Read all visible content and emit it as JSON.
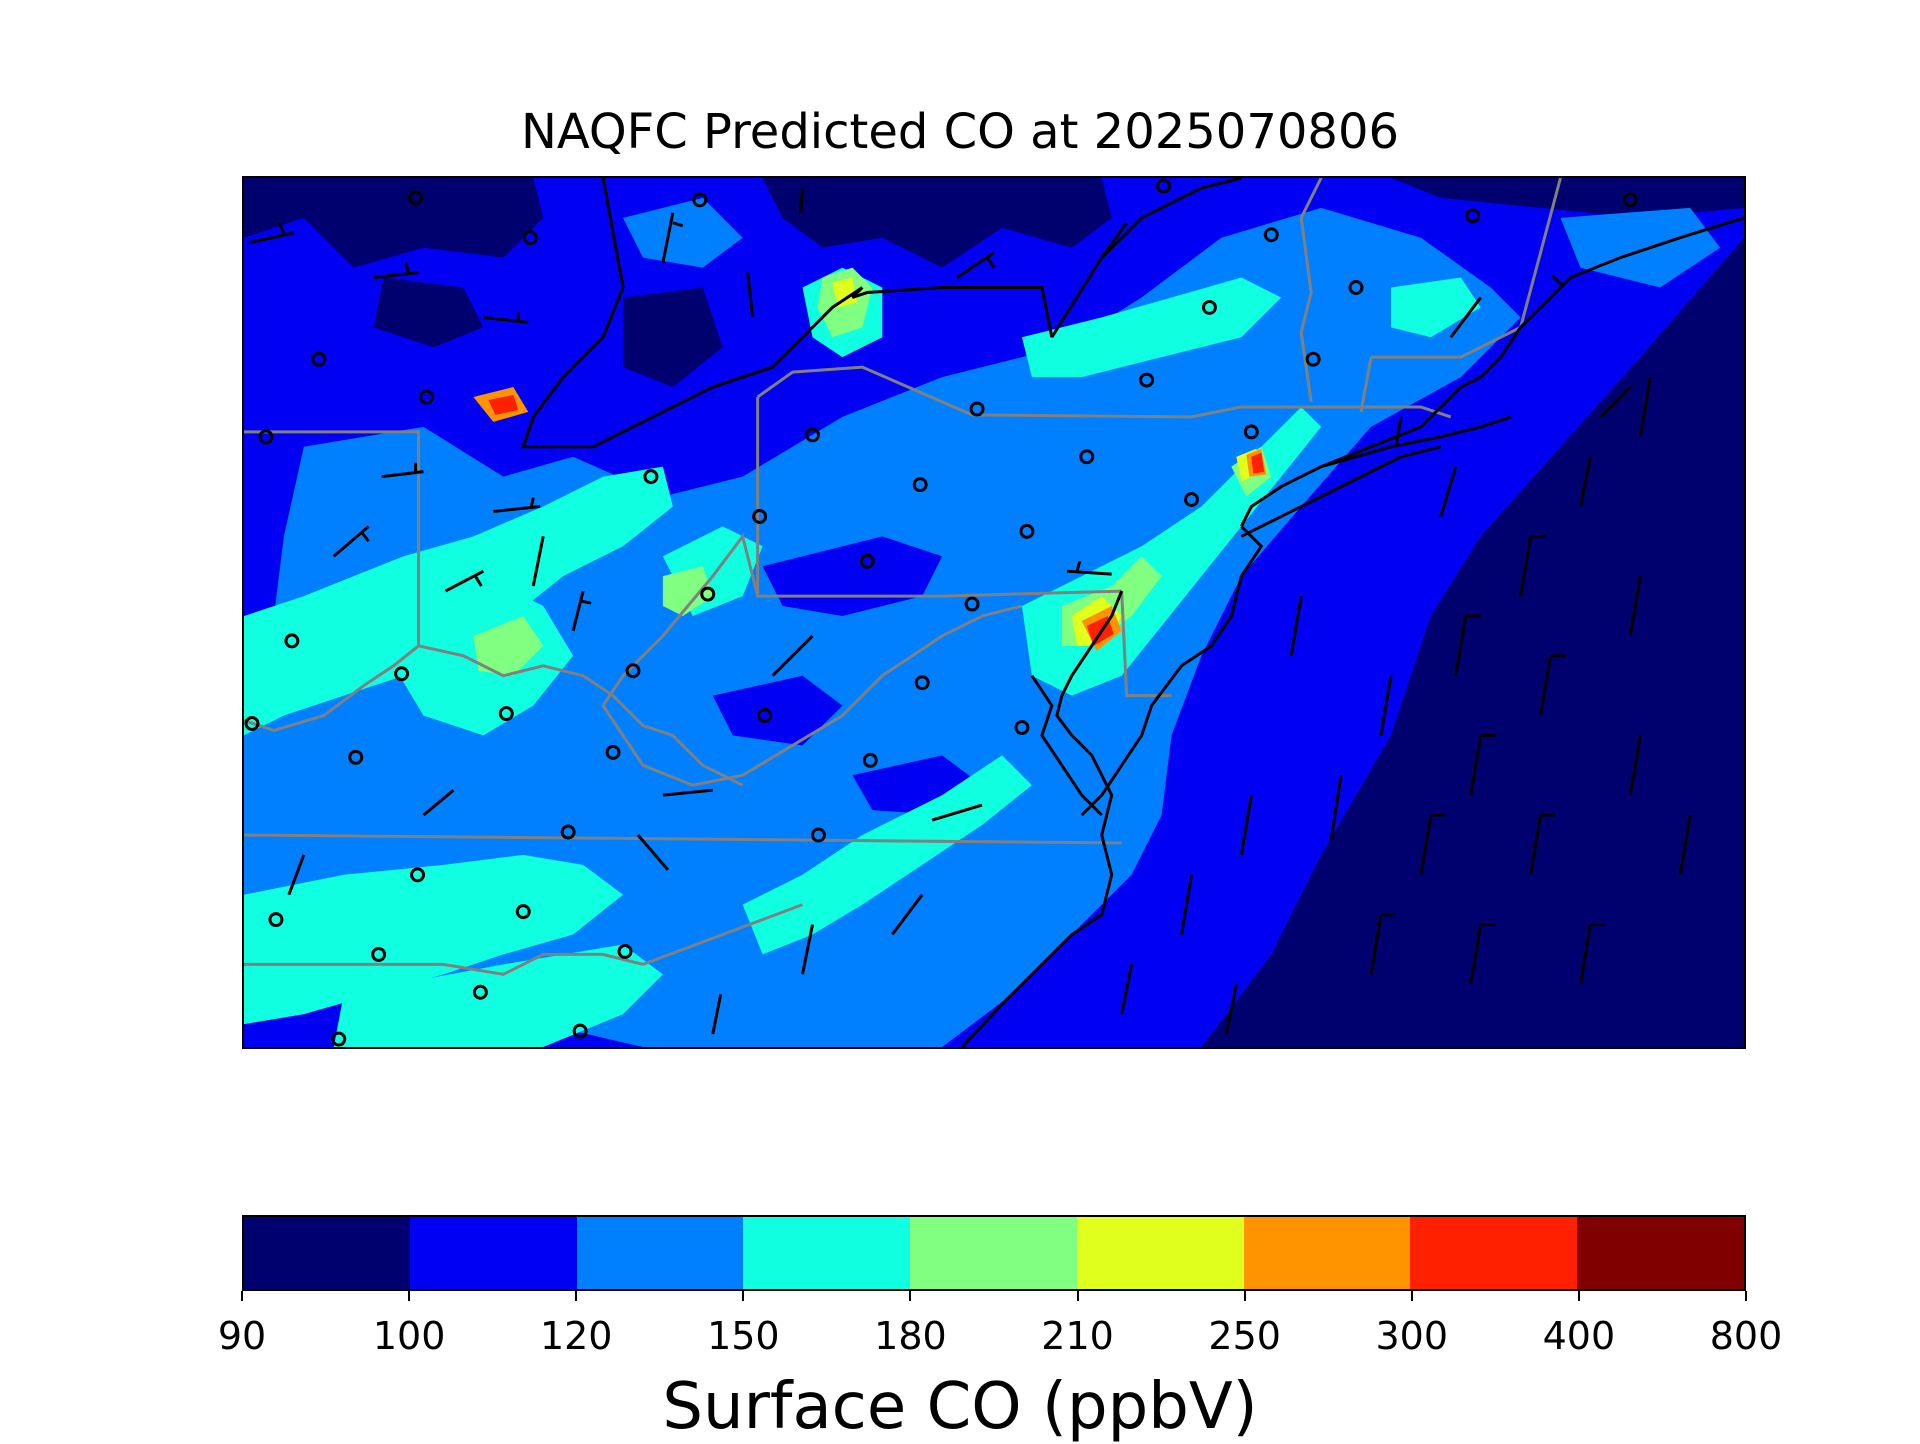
{
  "title": "NAQFC Predicted CO at 2025070806",
  "colorbar": {
    "label": "Surface CO (ppbV)",
    "ticks": [
      "90",
      "100",
      "120",
      "150",
      "180",
      "210",
      "250",
      "300",
      "400",
      "800"
    ],
    "colors": [
      "#00006e",
      "#0000f2",
      "#0080ff",
      "#10ffe0",
      "#80ff80",
      "#e0ff1c",
      "#ff9400",
      "#ff2000",
      "#800000"
    ]
  },
  "map": {
    "background_color": "#0000f2",
    "state_border_color": "#808080",
    "coast_color": "#000000",
    "station_marker": "open-circle",
    "wind_symbol": "wind-barb"
  }
}
